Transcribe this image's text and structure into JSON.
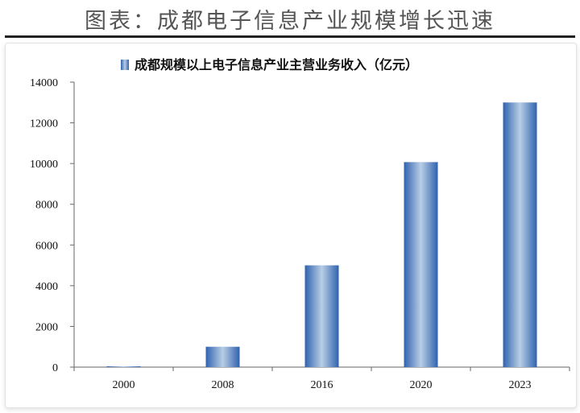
{
  "page": {
    "title": "图表：成都电子信息产业规模增长迅速"
  },
  "colors": {
    "bar_edge": "#2f63ae",
    "bar_center": "#b9cde6",
    "axis": "#666666"
  },
  "chart_data": {
    "type": "bar",
    "categories": [
      "2000",
      "2008",
      "2016",
      "2020",
      "2023"
    ],
    "series": [
      {
        "name": "成都规模以上电子信息产业主营业务收入（亿元）",
        "values": [
          30,
          1000,
          5000,
          10070,
          13000
        ]
      }
    ],
    "yticks": [
      "0",
      "2000",
      "4000",
      "6000",
      "8000",
      "10000",
      "12000",
      "14000"
    ],
    "ylim": [
      0,
      14000
    ],
    "xlabel": "",
    "ylabel": "",
    "grid": false,
    "legend_position": "top"
  }
}
